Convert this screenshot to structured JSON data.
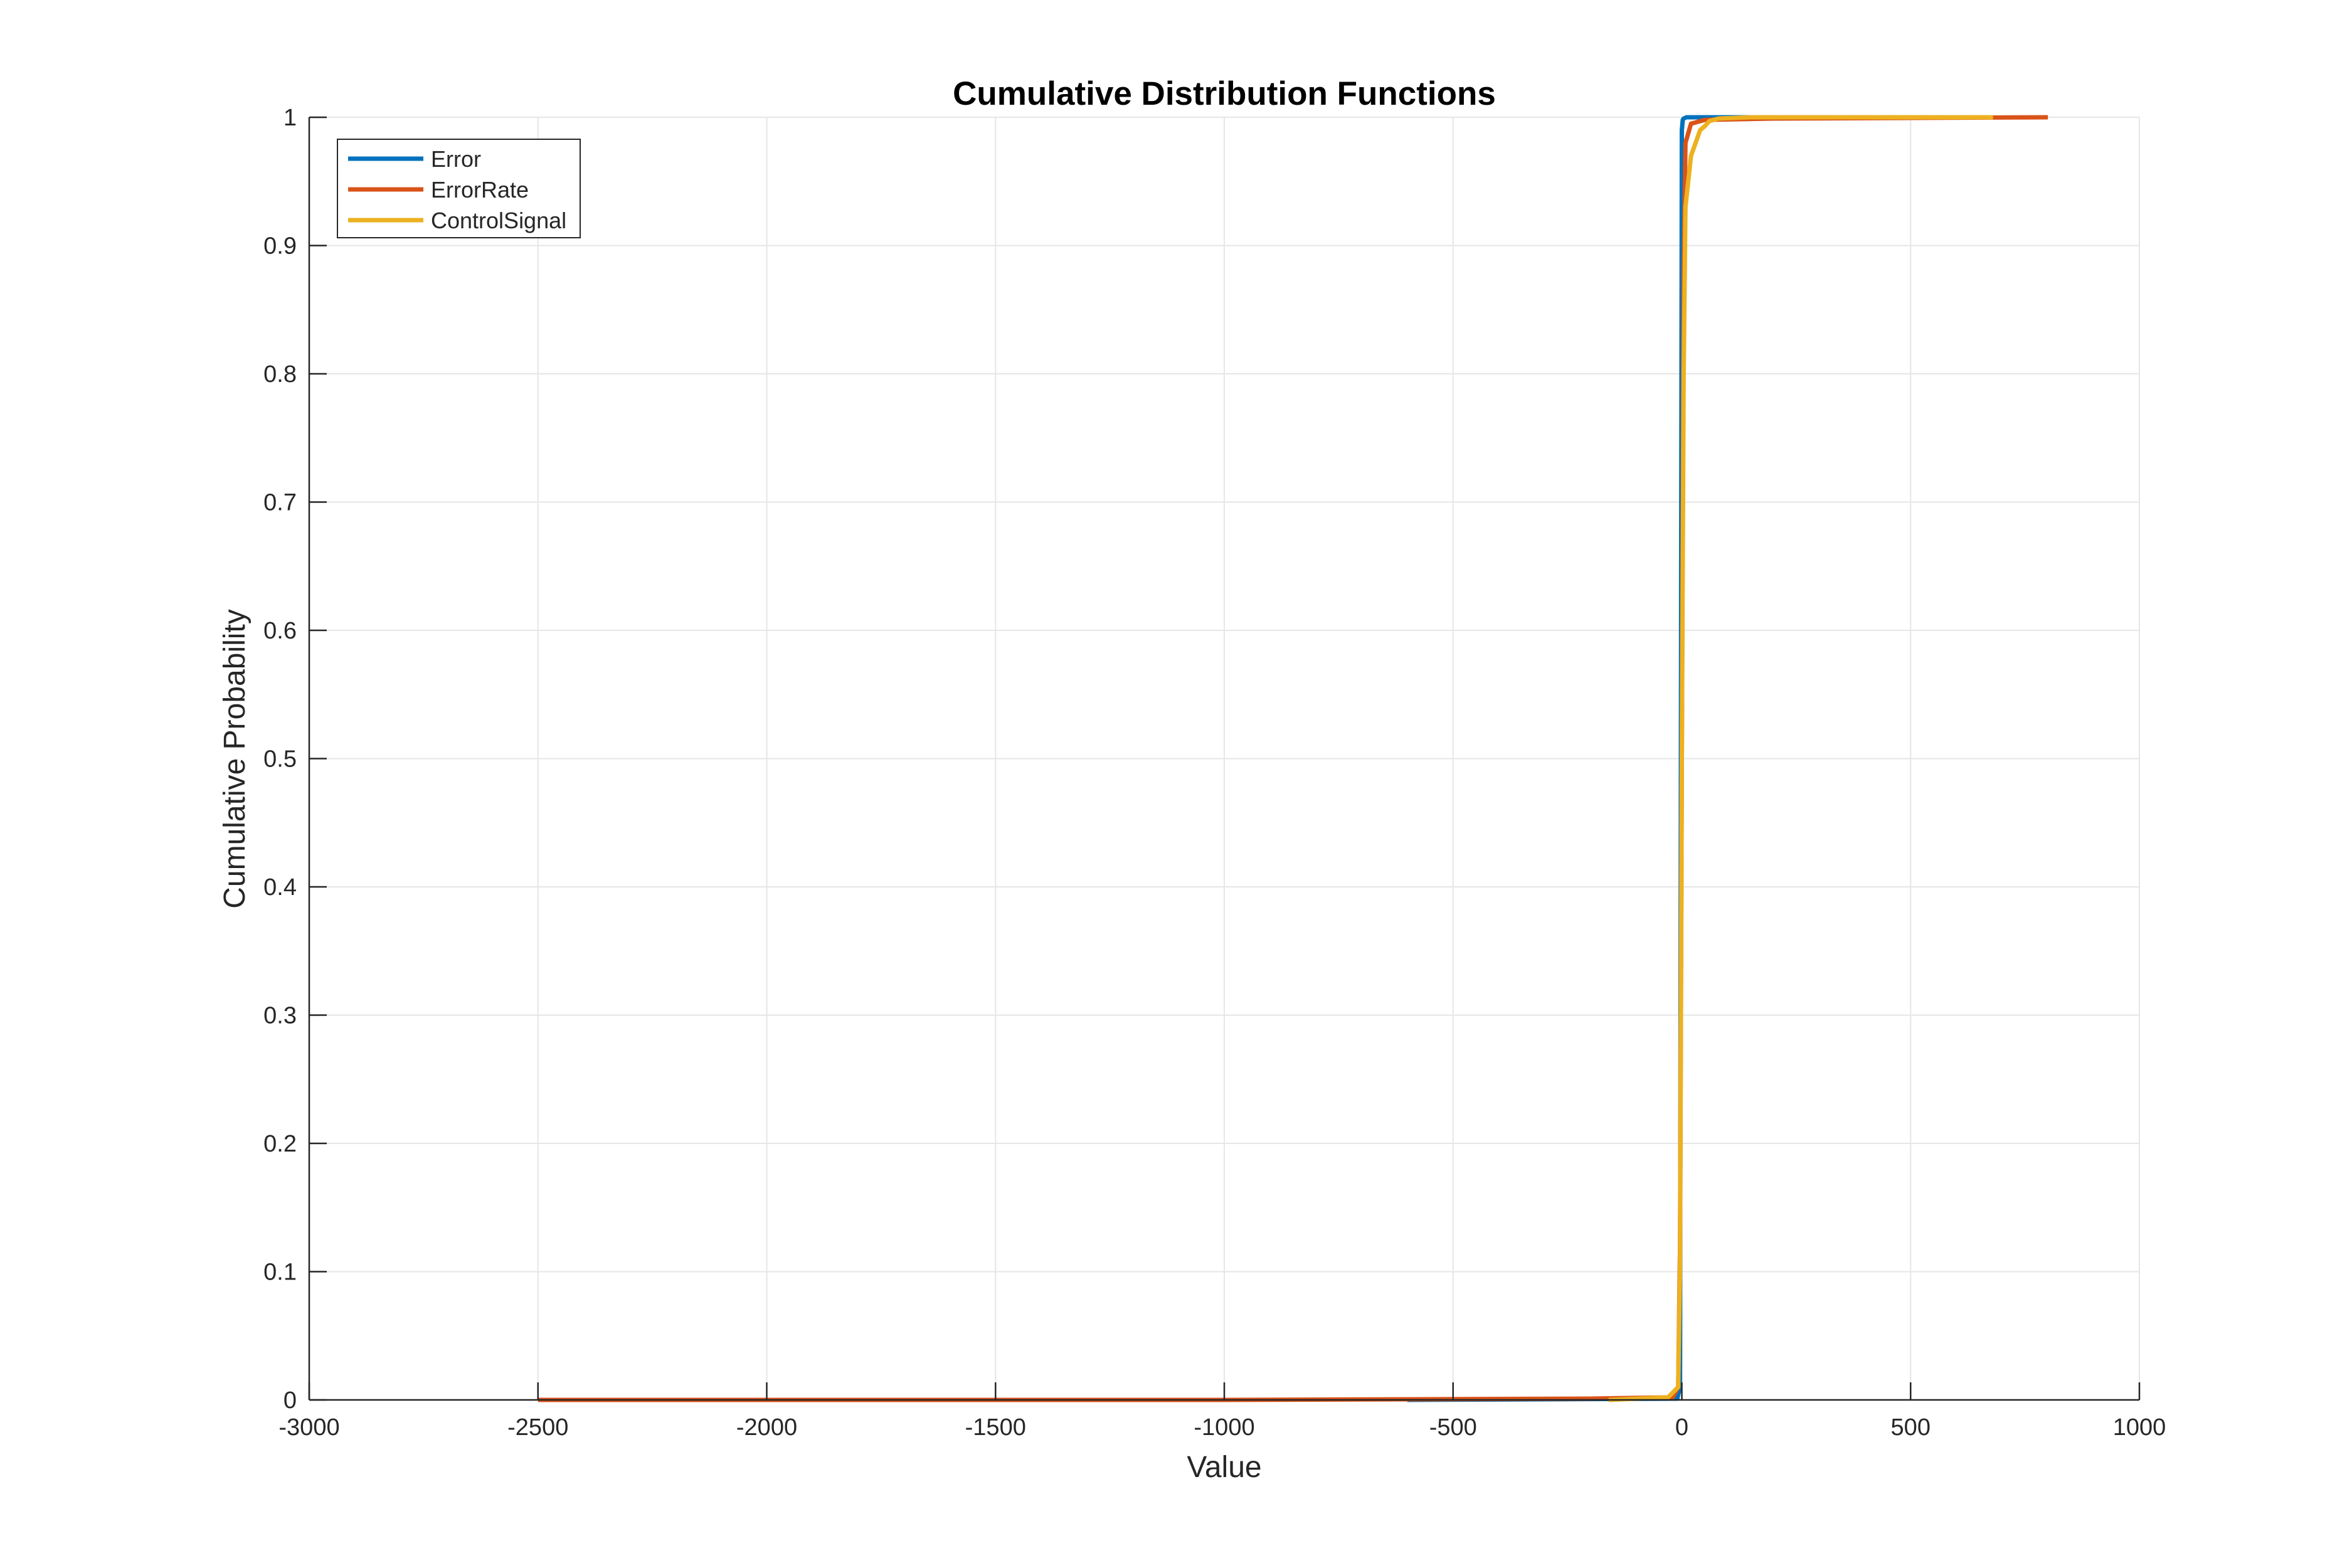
{
  "chart_data": {
    "type": "line",
    "title": "Cumulative Distribution Functions",
    "xlabel": "Value",
    "ylabel": "Cumulative Probability",
    "xlim": [
      -3000,
      1000
    ],
    "ylim": [
      0,
      1
    ],
    "xticks": [
      -3000,
      -2500,
      -2000,
      -1500,
      -1000,
      -500,
      0,
      500,
      1000
    ],
    "yticks": [
      0,
      0.1,
      0.2,
      0.3,
      0.4,
      0.5,
      0.6,
      0.7,
      0.8,
      0.9,
      1
    ],
    "xtick_labels": [
      "-3000",
      "-2500",
      "-2000",
      "-1500",
      "-1000",
      "-500",
      "0",
      "500",
      "1000"
    ],
    "ytick_labels": [
      "0",
      "0.1",
      "0.2",
      "0.3",
      "0.4",
      "0.5",
      "0.6",
      "0.7",
      "0.8",
      "0.9",
      "1"
    ],
    "grid": true,
    "legend_position": "top-left",
    "series": [
      {
        "name": "Error",
        "color": "#0072BD",
        "x": [
          -600,
          -10,
          -4,
          -2,
          0,
          2,
          4,
          10,
          600
        ],
        "y": [
          0.0,
          0.001,
          0.01,
          0.5,
          0.99,
          0.998,
          0.999,
          1.0,
          1.0
        ]
      },
      {
        "name": "ErrorRate",
        "color": "#D95319",
        "x": [
          -2500,
          -1000,
          -200,
          -20,
          -8,
          -4,
          0,
          4,
          8,
          20,
          50,
          200,
          800
        ],
        "y": [
          0.0,
          0.0,
          0.001,
          0.002,
          0.01,
          0.12,
          0.5,
          0.88,
          0.98,
          0.995,
          0.998,
          0.999,
          1.0
        ]
      },
      {
        "name": "ControlSignal",
        "color": "#EDB120",
        "x": [
          -160,
          -30,
          -8,
          -4,
          0,
          4,
          8,
          20,
          30,
          40,
          50,
          60,
          80,
          150,
          680
        ],
        "y": [
          0.0,
          0.002,
          0.01,
          0.1,
          0.5,
          0.8,
          0.93,
          0.97,
          0.98,
          0.99,
          0.993,
          0.997,
          0.999,
          1.0,
          1.0
        ]
      }
    ]
  }
}
